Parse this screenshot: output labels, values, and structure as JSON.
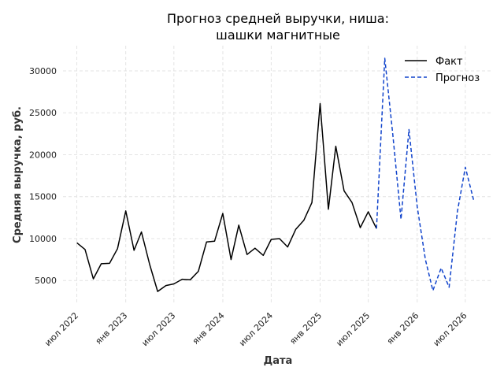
{
  "chart_data": {
    "type": "line",
    "title": [
      "Прогноз средней выручки, ниша:",
      "шашки магнитные"
    ],
    "xlabel": "Дата",
    "ylabel": "Средняя выручка, руб.",
    "x_ticks": [
      {
        "date": "2022-07-01",
        "label": "июл 2022"
      },
      {
        "date": "2023-01-01",
        "label": "янв 2023"
      },
      {
        "date": "2023-07-01",
        "label": "июл 2023"
      },
      {
        "date": "2024-01-01",
        "label": "янв 2024"
      },
      {
        "date": "2024-07-01",
        "label": "июл 2024"
      },
      {
        "date": "2025-01-01",
        "label": "янв 2025"
      },
      {
        "date": "2025-07-01",
        "label": "июл 2025"
      },
      {
        "date": "2026-01-01",
        "label": "янв 2026"
      },
      {
        "date": "2026-07-01",
        "label": "июл 2026"
      }
    ],
    "y_ticks": [
      5000,
      10000,
      15000,
      20000,
      25000,
      30000
    ],
    "xlim": [
      "2022-05-10",
      "2026-10-10"
    ],
    "ylim": [
      2300,
      33000
    ],
    "grid": true,
    "legend_position": "top-right",
    "series": [
      {
        "name": "Факт",
        "color": "#000000",
        "style": "solid",
        "points": [
          [
            "2022-07-01",
            9500
          ],
          [
            "2022-08-01",
            8700
          ],
          [
            "2022-09-01",
            5200
          ],
          [
            "2022-10-01",
            7000
          ],
          [
            "2022-11-01",
            7050
          ],
          [
            "2022-12-01",
            8800
          ],
          [
            "2023-01-01",
            13300
          ],
          [
            "2023-02-01",
            8600
          ],
          [
            "2023-03-01",
            10800
          ],
          [
            "2023-04-01",
            6900
          ],
          [
            "2023-05-01",
            3700
          ],
          [
            "2023-06-01",
            4400
          ],
          [
            "2023-07-01",
            4600
          ],
          [
            "2023-08-01",
            5150
          ],
          [
            "2023-09-01",
            5100
          ],
          [
            "2023-10-01",
            6100
          ],
          [
            "2023-11-01",
            9600
          ],
          [
            "2023-12-01",
            9700
          ],
          [
            "2024-01-01",
            13000
          ],
          [
            "2024-02-01",
            7500
          ],
          [
            "2024-03-01",
            11600
          ],
          [
            "2024-04-01",
            8100
          ],
          [
            "2024-05-01",
            8850
          ],
          [
            "2024-06-01",
            8000
          ],
          [
            "2024-07-01",
            9900
          ],
          [
            "2024-08-01",
            10000
          ],
          [
            "2024-09-01",
            9000
          ],
          [
            "2024-10-01",
            11100
          ],
          [
            "2024-11-01",
            12200
          ],
          [
            "2024-12-01",
            14300
          ],
          [
            "2025-01-01",
            26100
          ],
          [
            "2025-02-01",
            13500
          ],
          [
            "2025-03-01",
            21000
          ],
          [
            "2025-04-01",
            15700
          ],
          [
            "2025-05-01",
            14300
          ],
          [
            "2025-06-01",
            11300
          ],
          [
            "2025-07-01",
            13200
          ],
          [
            "2025-08-01",
            11200
          ]
        ]
      },
      {
        "name": "Прогноз",
        "color": "#1144cc",
        "style": "dashed",
        "points": [
          [
            "2025-08-01",
            11200
          ],
          [
            "2025-09-01",
            31500
          ],
          [
            "2025-10-01",
            22500
          ],
          [
            "2025-11-01",
            12300
          ],
          [
            "2025-12-01",
            23000
          ],
          [
            "2026-01-01",
            13800
          ],
          [
            "2026-02-01",
            7500
          ],
          [
            "2026-03-01",
            3800
          ],
          [
            "2026-04-01",
            6500
          ],
          [
            "2026-05-01",
            4200
          ],
          [
            "2026-06-01",
            13200
          ],
          [
            "2026-07-01",
            18500
          ],
          [
            "2026-08-01",
            14600
          ]
        ]
      }
    ]
  }
}
